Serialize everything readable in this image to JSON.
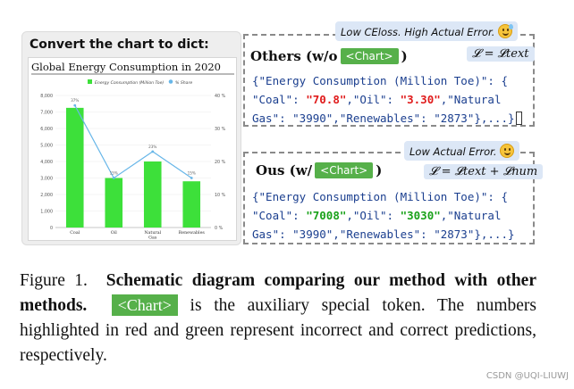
{
  "left_panel": {
    "title": "Convert the chart to dict:"
  },
  "chart_data": {
    "type": "bar",
    "title": "Global Energy Consumption in 2020",
    "categories": [
      "Coal",
      "Oil",
      "Natural Gas",
      "Renewables"
    ],
    "series": [
      {
        "name": "Energy Consumption (Million Toe)",
        "values": [
          7250,
          3000,
          4000,
          2800
        ],
        "axis": "left",
        "color": "#3de03a"
      },
      {
        "name": "% Share",
        "values": [
          37,
          15,
          23,
          15
        ],
        "axis": "right",
        "type": "line",
        "color": "#67b6e8"
      }
    ],
    "bar_labels": [
      "37%",
      "15%",
      "23%",
      "15%"
    ],
    "left_ticks": [
      "0",
      "1,000",
      "2,000",
      "3,000",
      "4,000",
      "5,000",
      "6,000",
      "7,000",
      "8,000"
    ],
    "right_ticks": [
      "0 %",
      "10 %",
      "20 %",
      "30 %",
      "40 %"
    ],
    "ylim": [
      0,
      8000
    ],
    "y2lim": [
      0,
      40
    ],
    "legend_position": "top"
  },
  "others": {
    "label_prefix": "Others (w/o",
    "token": "<Chart>",
    "label_suffix": ")",
    "note": "Low CEloss. High Actual Error.",
    "formula": "𝓛 = 𝓛text",
    "code": {
      "open": "{\"Energy Consumption (Million Toe)\": {",
      "coal_key": "\"Coal\": ",
      "coal_val": "\"70.8\"",
      "oil_key": ",\"Oil\": ",
      "oil_val": "\"3.30\"",
      "gas_key": ",\"Natural",
      "line3": "Gas\": \"3990\",\"Renewables\": \"2873\"},...}"
    }
  },
  "ours": {
    "label_prefix": "Ous (w/",
    "token": "<Chart>",
    "label_suffix": ")",
    "note": "Low Actual Error.",
    "formula": "𝓛 = 𝓛text + 𝓛num",
    "code": {
      "open": "{\"Energy Consumption (Million Toe)\": {",
      "coal_key": "\"Coal\": ",
      "coal_val": "\"7008\"",
      "oil_key": ",\"Oil\": ",
      "oil_val": "\"3030\"",
      "gas_key": ",\"Natural",
      "line3": "Gas\": \"3990\",\"Renewables\": \"2873\"},...}"
    }
  },
  "caption": {
    "fig": "Figure 1.",
    "bold": "Schematic diagram comparing our method with other methods.",
    "token": "<Chart>",
    "rest": " is the auxiliary special token. The numbers highlighted in red and green represent incorrect and correct predictions, respectively."
  },
  "watermark": "CSDN @UQI-LIUWJ"
}
